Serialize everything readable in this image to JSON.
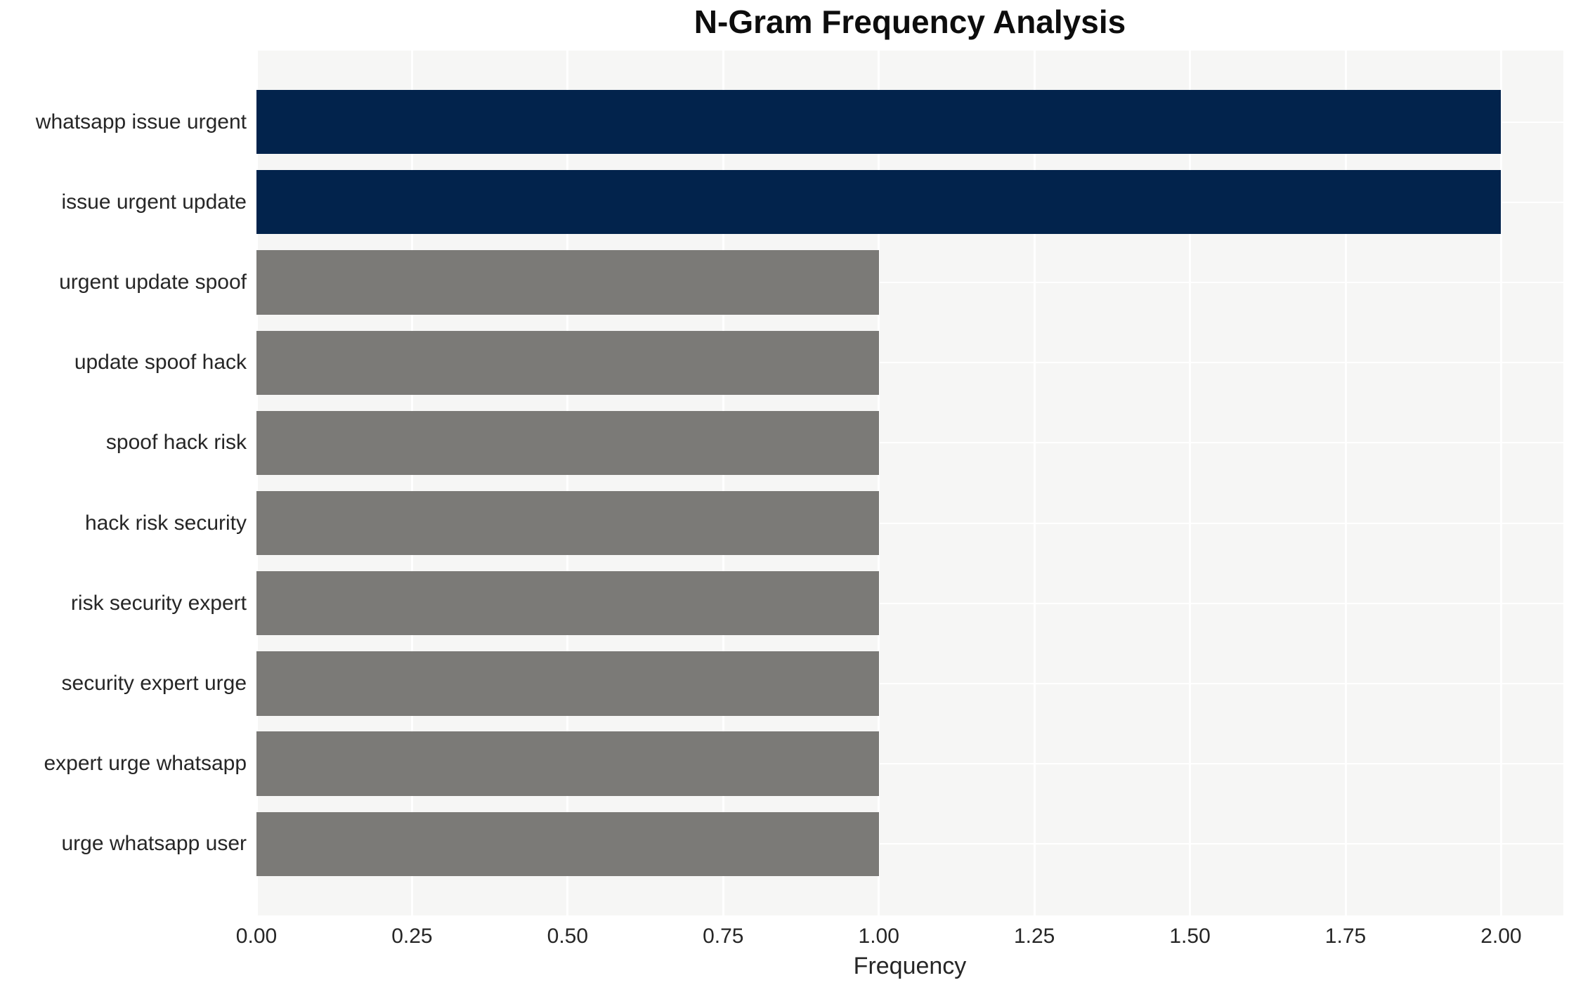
{
  "chart_data": {
    "type": "bar",
    "orientation": "horizontal",
    "title": "N-Gram Frequency Analysis",
    "xlabel": "Frequency",
    "ylabel": "",
    "categories": [
      "whatsapp issue urgent",
      "issue urgent update",
      "urgent update spoof",
      "update spoof hack",
      "spoof hack risk",
      "hack risk security",
      "risk security expert",
      "security expert urge",
      "expert urge whatsapp",
      "urge whatsapp user"
    ],
    "values": [
      2,
      2,
      1,
      1,
      1,
      1,
      1,
      1,
      1,
      1
    ],
    "bar_colors": [
      "#02234c",
      "#02234c",
      "#7b7a77",
      "#7b7a77",
      "#7b7a77",
      "#7b7a77",
      "#7b7a77",
      "#7b7a77",
      "#7b7a77",
      "#7b7a77"
    ],
    "xlim": [
      0,
      2.1
    ],
    "xticks": [
      {
        "value": 0.0,
        "label": "0.00"
      },
      {
        "value": 0.25,
        "label": "0.25"
      },
      {
        "value": 0.5,
        "label": "0.50"
      },
      {
        "value": 0.75,
        "label": "0.75"
      },
      {
        "value": 1.0,
        "label": "1.00"
      },
      {
        "value": 1.25,
        "label": "1.25"
      },
      {
        "value": 1.5,
        "label": "1.50"
      },
      {
        "value": 1.75,
        "label": "1.75"
      },
      {
        "value": 2.0,
        "label": "2.00"
      }
    ],
    "bar_fraction": 0.8,
    "axis_padding_fraction": 0.05,
    "grid": true,
    "grid_color": "#ffffff",
    "plot_background": "#f6f6f5",
    "legend_position": "none"
  }
}
